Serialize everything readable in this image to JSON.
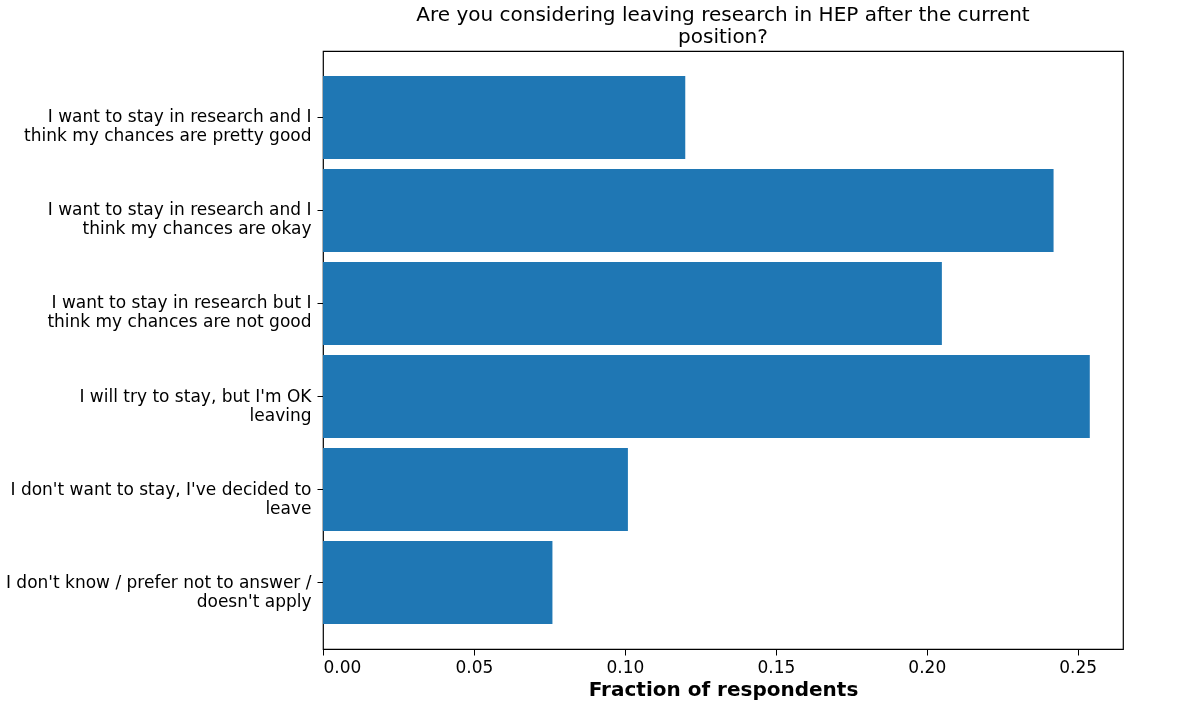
{
  "chart_data": {
    "type": "bar",
    "orientation": "horizontal",
    "title": "Are you considering leaving research in HEP after the current position?",
    "xlabel": "Fraction of respondents",
    "categories": [
      "I want to stay in research and I think my chances are pretty good",
      "I want to stay in research and I think my chances are okay",
      "I want to stay in research but I think my chances are not good",
      "I will try to stay, but I'm OK leaving",
      "I don't want to stay, I've decided to leave",
      "I don't know / prefer not to answer / doesn't apply"
    ],
    "values": [
      0.12,
      0.242,
      0.205,
      0.254,
      0.101,
      0.076
    ],
    "color": "#1f77b4",
    "xlim": [
      0,
      0.265
    ],
    "xticks": [
      {
        "value": 0,
        "label": "0.00"
      },
      0.05,
      {
        "value": 0.1,
        "label": "0.10"
      },
      0.15,
      {
        "value": 0.2,
        "label": "0.20"
      },
      0.25
    ],
    "grid": false
  }
}
